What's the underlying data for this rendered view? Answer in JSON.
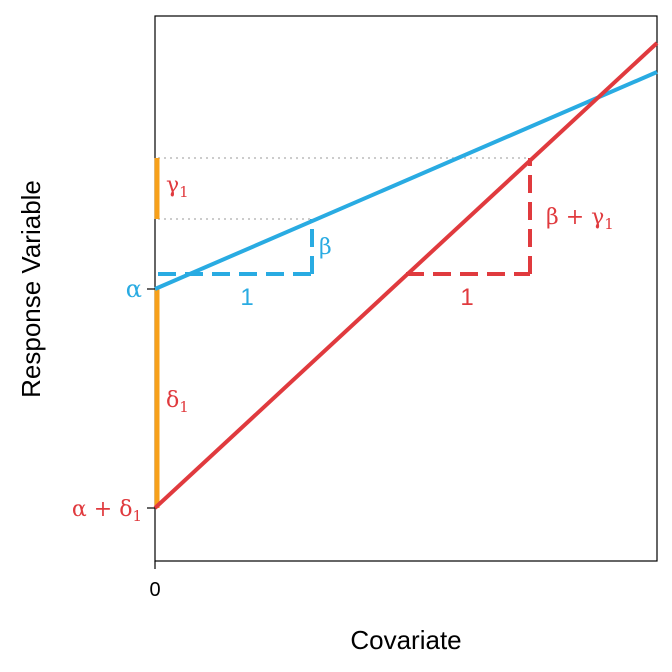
{
  "axes": {
    "xlabel": "Covariate",
    "ylabel": "Response Variable",
    "x_tick": "0"
  },
  "colors": {
    "group_a": "#29ABE2",
    "group_b": "#E03A3E",
    "difference": "#F7A01A",
    "guide": "#BBBBBB",
    "frame": "#000000"
  },
  "labels": {
    "alpha": "α",
    "alpha_plus_delta": "α + δ",
    "delta_sub": "1",
    "delta": "δ",
    "gamma": "γ",
    "gamma_sub": "1",
    "beta": "β",
    "beta_plus_gamma": "β + γ",
    "gamma_plus_sub": "1",
    "run_blue": "1",
    "run_red": "1"
  }
}
